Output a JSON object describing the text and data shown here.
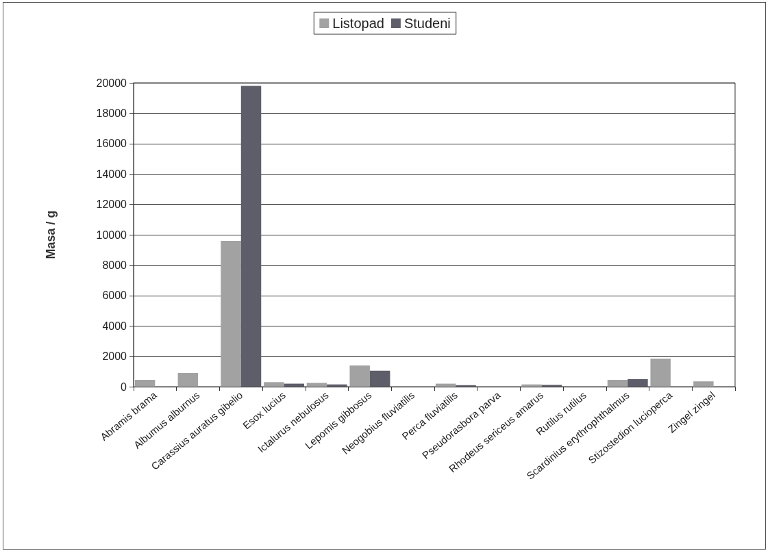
{
  "chart_data": {
    "type": "bar",
    "categories": [
      "Abramis brama",
      "Albumus alburnus",
      "Carassius auratus gibelio",
      "Esox lucius",
      "Ictalurus nebulosus",
      "Lepomis gibbosus",
      "Neogobius fluviatilis",
      "Perca fluviatilis",
      "Pseudorasbora parva",
      "Rhodeus sericeus amarus",
      "Rutilus rutilus",
      "Scardinius erythrophthalmus",
      "Stizostedion lucioperca",
      "Zingel zingel"
    ],
    "series": [
      {
        "name": "Listopad",
        "color": "#a2a2a2",
        "values": [
          450,
          900,
          9600,
          300,
          250,
          1400,
          0,
          200,
          0,
          150,
          0,
          450,
          1850,
          350
        ]
      },
      {
        "name": "Studeni",
        "color": "#5e5e6a",
        "values": [
          0,
          0,
          19800,
          200,
          150,
          1050,
          0,
          100,
          0,
          120,
          0,
          500,
          0,
          0
        ]
      }
    ],
    "ylabel": "Masa / g",
    "ylim": [
      0,
      20000
    ],
    "yticks": [
      0,
      2000,
      4000,
      6000,
      8000,
      10000,
      12000,
      14000,
      16000,
      18000,
      20000
    ],
    "grid": "y",
    "legend": "top"
  }
}
